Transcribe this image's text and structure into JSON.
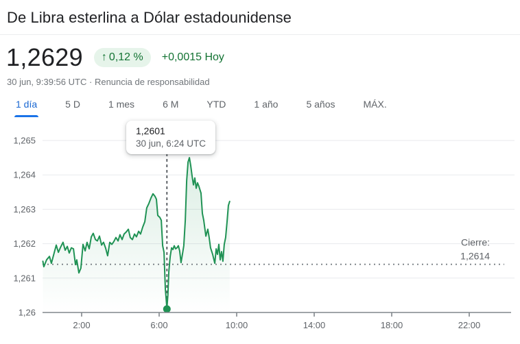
{
  "header": {
    "title": "De Libra esterlina a Dólar estadounidense",
    "price": "1,2629",
    "change": {
      "arrow": "↑",
      "percent": "0,12 %",
      "absolute": "+0,0015",
      "period": "Hoy"
    },
    "timestamp": "30 jun, 9:39:56 UTC",
    "separator": "·",
    "disclaimer_link": "Renuncia de responsabilidad",
    "colors": {
      "positive_green": "#137333",
      "badge_bg": "#e6f4ea",
      "active_tab_blue": "#1967d2"
    }
  },
  "tabs": [
    {
      "label": "1 día",
      "active": true
    },
    {
      "label": "5 D",
      "active": false
    },
    {
      "label": "1 mes",
      "active": false
    },
    {
      "label": "6 M",
      "active": false
    },
    {
      "label": "YTD",
      "active": false
    },
    {
      "label": "1 año",
      "active": false
    },
    {
      "label": "5 años",
      "active": false
    },
    {
      "label": "MÁX.",
      "active": false
    }
  ],
  "tooltip": {
    "price": "1,2601",
    "time": "30 jun, 6:24 UTC"
  },
  "chart_data": {
    "type": "area",
    "grid": true,
    "x_range_hours": [
      0,
      24
    ],
    "y_range": [
      1.26,
      1.265
    ],
    "x_ticks": [
      {
        "t": 2,
        "label": "2:00"
      },
      {
        "t": 6,
        "label": "6:00"
      },
      {
        "t": 10,
        "label": "10:00"
      },
      {
        "t": 14,
        "label": "14:00"
      },
      {
        "t": 18,
        "label": "18:00"
      },
      {
        "t": 22,
        "label": "22:00"
      }
    ],
    "y_ticks": [
      {
        "value": 1.265,
        "label": "1,265"
      },
      {
        "value": 1.264,
        "label": "1,264"
      },
      {
        "value": 1.263,
        "label": "1,263"
      },
      {
        "value": 1.262,
        "label": "1,262"
      },
      {
        "value": 1.261,
        "label": "1,261"
      },
      {
        "value": 1.26,
        "label": "1,26"
      }
    ],
    "close_line": {
      "label": "Cierre:",
      "value": 1.2614,
      "value_label": "1,2614"
    },
    "cursor": {
      "time_hours": 6.4,
      "price": 1.2601
    },
    "colors": {
      "line": "#1f9254",
      "fill_top": "rgba(31,146,84,0.16)",
      "fill_bottom": "rgba(31,146,84,0)",
      "grid": "#e8eaed",
      "axis": "#80868b",
      "close_dots": "#80868b",
      "cursor": "#5f6368",
      "tick_text": "#5f6368"
    },
    "series": [
      [
        0,
        1.26149
      ],
      [
        0.05,
        1.26133
      ],
      [
        0.19,
        1.26153
      ],
      [
        0.34,
        1.26163
      ],
      [
        0.44,
        1.26143
      ],
      [
        0.58,
        1.26173
      ],
      [
        0.69,
        1.26196
      ],
      [
        0.8,
        1.26175
      ],
      [
        0.9,
        1.26188
      ],
      [
        1.04,
        1.26204
      ],
      [
        1.15,
        1.26181
      ],
      [
        1.26,
        1.26192
      ],
      [
        1.36,
        1.26173
      ],
      [
        1.47,
        1.26188
      ],
      [
        1.58,
        1.26185
      ],
      [
        1.68,
        1.26139
      ],
      [
        1.75,
        1.26153
      ],
      [
        1.86,
        1.26115
      ],
      [
        1.96,
        1.26129
      ],
      [
        2.07,
        1.26198
      ],
      [
        2.18,
        1.26179
      ],
      [
        2.28,
        1.26204
      ],
      [
        2.39,
        1.26185
      ],
      [
        2.5,
        1.2622
      ],
      [
        2.6,
        1.2623
      ],
      [
        2.71,
        1.26212
      ],
      [
        2.81,
        1.26208
      ],
      [
        2.92,
        1.26222
      ],
      [
        3.03,
        1.26196
      ],
      [
        3.13,
        1.26204
      ],
      [
        3.24,
        1.26187
      ],
      [
        3.34,
        1.26165
      ],
      [
        3.45,
        1.26204
      ],
      [
        3.56,
        1.26198
      ],
      [
        3.66,
        1.26206
      ],
      [
        3.77,
        1.26218
      ],
      [
        3.88,
        1.26208
      ],
      [
        3.98,
        1.26226
      ],
      [
        4.09,
        1.26212
      ],
      [
        4.19,
        1.26228
      ],
      [
        4.3,
        1.26234
      ],
      [
        4.41,
        1.26242
      ],
      [
        4.51,
        1.26218
      ],
      [
        4.62,
        1.26212
      ],
      [
        4.73,
        1.26228
      ],
      [
        4.83,
        1.2622
      ],
      [
        4.94,
        1.26236
      ],
      [
        5.04,
        1.26228
      ],
      [
        5.15,
        1.26248
      ],
      [
        5.26,
        1.26264
      ],
      [
        5.36,
        1.26304
      ],
      [
        5.47,
        1.26317
      ],
      [
        5.58,
        1.26333
      ],
      [
        5.68,
        1.26345
      ],
      [
        5.79,
        1.26337
      ],
      [
        5.86,
        1.26329
      ],
      [
        5.93,
        1.26282
      ],
      [
        6.04,
        1.26276
      ],
      [
        6.11,
        1.26268
      ],
      [
        6.18,
        1.26194
      ],
      [
        6.25,
        1.26175
      ],
      [
        6.32,
        1.26069
      ],
      [
        6.4,
        1.26012
      ],
      [
        6.45,
        1.2605
      ],
      [
        6.5,
        1.26119
      ],
      [
        6.57,
        1.26163
      ],
      [
        6.64,
        1.26188
      ],
      [
        6.71,
        1.26183
      ],
      [
        6.78,
        1.26194
      ],
      [
        6.85,
        1.26185
      ],
      [
        6.92,
        1.26188
      ],
      [
        6.99,
        1.26194
      ],
      [
        7.06,
        1.26179
      ],
      [
        7.13,
        1.26145
      ],
      [
        7.2,
        1.26169
      ],
      [
        7.27,
        1.26194
      ],
      [
        7.35,
        1.26268
      ],
      [
        7.42,
        1.26383
      ],
      [
        7.49,
        1.26437
      ],
      [
        7.56,
        1.2645
      ],
      [
        7.63,
        1.26427
      ],
      [
        7.7,
        1.26397
      ],
      [
        7.77,
        1.26371
      ],
      [
        7.84,
        1.26391
      ],
      [
        7.91,
        1.26361
      ],
      [
        7.98,
        1.26377
      ],
      [
        8.05,
        1.26367
      ],
      [
        8.16,
        1.26347
      ],
      [
        8.23,
        1.26288
      ],
      [
        8.3,
        1.26268
      ],
      [
        8.41,
        1.26222
      ],
      [
        8.51,
        1.26242
      ],
      [
        8.58,
        1.26218
      ],
      [
        8.65,
        1.26188
      ],
      [
        8.76,
        1.26169
      ],
      [
        8.87,
        1.26143
      ],
      [
        8.94,
        1.26185
      ],
      [
        9.01,
        1.26169
      ],
      [
        9.08,
        1.26198
      ],
      [
        9.15,
        1.26153
      ],
      [
        9.22,
        1.26177
      ],
      [
        9.29,
        1.26149
      ],
      [
        9.36,
        1.26198
      ],
      [
        9.43,
        1.26218
      ],
      [
        9.5,
        1.26262
      ],
      [
        9.57,
        1.26311
      ],
      [
        9.64,
        1.26323
      ]
    ]
  }
}
